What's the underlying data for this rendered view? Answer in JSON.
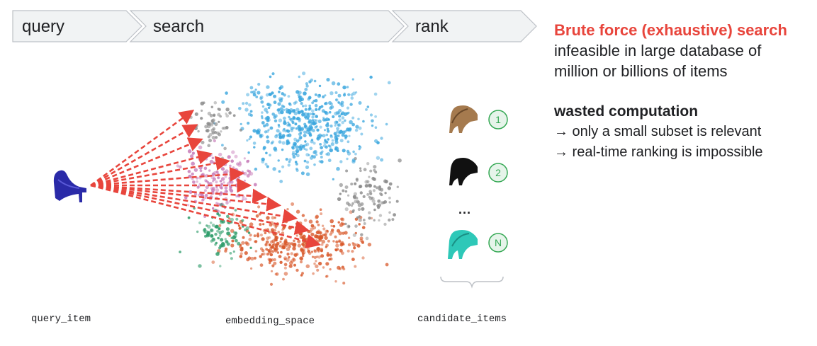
{
  "steps": [
    {
      "label": "query"
    },
    {
      "label": "search"
    },
    {
      "label": "rank"
    }
  ],
  "info": {
    "brute_force_title": "Brute force (exhaustive) search",
    "brute_force_line1": "infeasible in large database of",
    "brute_force_line2": "million or billions of items",
    "wasted_title": "wasted computation",
    "wasted_point1": "→ only a small subset is relevant",
    "wasted_point2": "→ real-time ranking is impossible"
  },
  "candidates": {
    "badge1": "1",
    "badge2": "2",
    "badgeN": "N",
    "ellipsis": "..."
  },
  "captions": {
    "query_item": "query_item",
    "embedding_space": "embedding_space",
    "candidate_items": "candidate_items"
  },
  "colors": {
    "accent_red": "#e8453c",
    "cluster_blue": "#3aa6de",
    "cluster_orange": "#d8582a",
    "cluster_green": "#2e9c6a",
    "cluster_pink": "#c77bb8",
    "cluster_gray": "#8a8a8a",
    "badge_green": "#34a853",
    "shoe_query": "#2a2aa8",
    "shoe_1": "#a57a4e",
    "shoe_2": "#111111",
    "shoe_n": "#2ec8b8"
  },
  "icons": {
    "query_shoe": "high-heel-shoe-icon",
    "candidate_shoe": "high-heel-shoe-icon"
  }
}
